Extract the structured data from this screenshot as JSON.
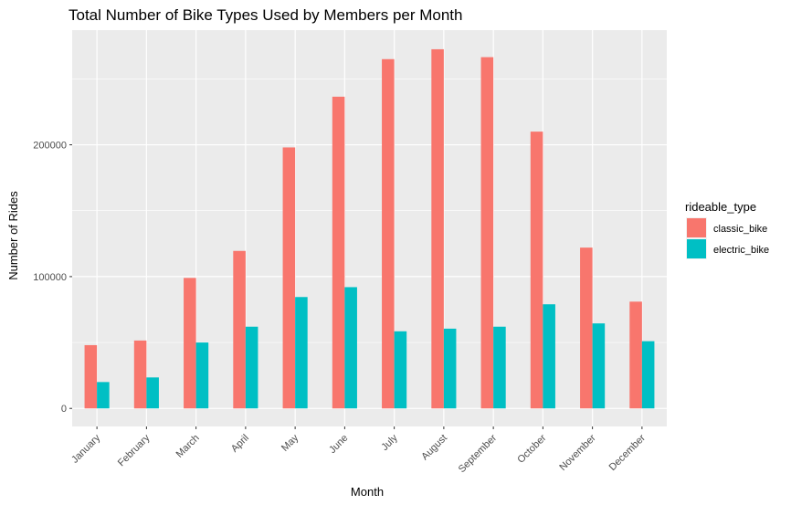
{
  "chart_data": {
    "type": "bar",
    "title": "Total Number of Bike Types Used by Members per Month",
    "xlabel": "Month",
    "ylabel": "Number of Rides",
    "categories": [
      "January",
      "February",
      "March",
      "April",
      "May",
      "June",
      "July",
      "August",
      "September",
      "October",
      "November",
      "December"
    ],
    "series": [
      {
        "name": "classic_bike",
        "color": "#F8766D",
        "values": [
          48000,
          51500,
          99000,
          119500,
          198000,
          236500,
          265000,
          272500,
          266500,
          210000,
          122000,
          81000
        ]
      },
      {
        "name": "electric_bike",
        "color": "#00BFC4",
        "values": [
          20000,
          23500,
          50000,
          62000,
          84500,
          92000,
          58500,
          60500,
          62000,
          79000,
          64500,
          51000
        ]
      }
    ],
    "yticks": [
      0,
      100000,
      200000
    ],
    "ytick_labels": [
      "0",
      "100000",
      "200000"
    ],
    "ylim": [
      -13700,
      287000
    ],
    "grid": true,
    "legend": {
      "title": "rideable_type",
      "position": "right"
    },
    "panel_color": "#EBEBEB"
  }
}
